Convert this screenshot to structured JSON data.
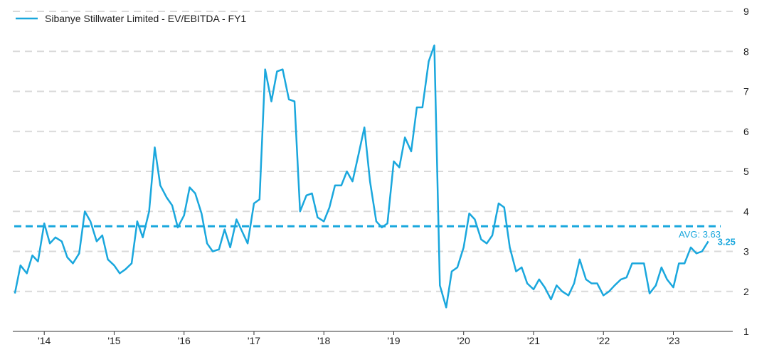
{
  "chart_data": {
    "type": "line",
    "series": [
      {
        "name": "Sibanye Stillwater Limited - EV/EBITDA - FY1",
        "x": [
          2013.58,
          2013.66,
          2013.75,
          2013.83,
          2013.91,
          2014.0,
          2014.08,
          2014.16,
          2014.25,
          2014.33,
          2014.41,
          2014.5,
          2014.58,
          2014.66,
          2014.75,
          2014.83,
          2014.91,
          2015.0,
          2015.08,
          2015.16,
          2015.25,
          2015.33,
          2015.41,
          2015.5,
          2015.58,
          2015.66,
          2015.75,
          2015.83,
          2015.91,
          2016.0,
          2016.08,
          2016.16,
          2016.25,
          2016.33,
          2016.41,
          2016.5,
          2016.58,
          2016.66,
          2016.75,
          2016.83,
          2016.91,
          2017.0,
          2017.08,
          2017.16,
          2017.25,
          2017.33,
          2017.41,
          2017.5,
          2017.58,
          2017.66,
          2017.75,
          2017.83,
          2017.91,
          2018.0,
          2018.08,
          2018.16,
          2018.25,
          2018.33,
          2018.41,
          2018.5,
          2018.58,
          2018.66,
          2018.75,
          2018.83,
          2018.91,
          2019.0,
          2019.08,
          2019.16,
          2019.25,
          2019.33,
          2019.41,
          2019.5,
          2019.58,
          2019.66,
          2019.75,
          2019.83,
          2019.91,
          2020.0,
          2020.08,
          2020.16,
          2020.25,
          2020.33,
          2020.41,
          2020.5,
          2020.58,
          2020.66,
          2020.75,
          2020.83,
          2020.91,
          2021.0,
          2021.08,
          2021.16,
          2021.25,
          2021.33,
          2021.41,
          2021.5,
          2021.58,
          2021.66,
          2021.75,
          2021.83,
          2021.91,
          2022.0,
          2022.08,
          2022.16,
          2022.25,
          2022.33,
          2022.41,
          2022.5,
          2022.58,
          2022.66,
          2022.75,
          2022.83,
          2022.91,
          2023.0,
          2023.08,
          2023.16,
          2023.25,
          2023.33,
          2023.41,
          2023.5
        ],
        "y": [
          1.95,
          2.65,
          2.45,
          2.9,
          2.75,
          3.7,
          3.2,
          3.35,
          3.25,
          2.85,
          2.7,
          2.95,
          4.0,
          3.75,
          3.25,
          3.4,
          2.8,
          2.65,
          2.45,
          2.55,
          2.7,
          3.75,
          3.35,
          4.0,
          5.6,
          4.65,
          4.35,
          4.15,
          3.6,
          3.9,
          4.6,
          4.45,
          3.95,
          3.2,
          3.0,
          3.05,
          3.55,
          3.1,
          3.8,
          3.5,
          3.2,
          4.2,
          4.3,
          7.55,
          6.75,
          7.5,
          7.55,
          6.8,
          6.75,
          4.0,
          4.4,
          4.45,
          3.85,
          3.75,
          4.1,
          4.65,
          4.65,
          5.0,
          4.75,
          5.45,
          6.1,
          4.75,
          3.75,
          3.6,
          3.7,
          5.25,
          5.1,
          5.85,
          5.5,
          6.6,
          6.6,
          7.75,
          8.15,
          2.15,
          1.6,
          2.5,
          2.6,
          3.1,
          3.95,
          3.8,
          3.3,
          3.2,
          3.4,
          4.2,
          4.1,
          3.1,
          2.5,
          2.6,
          2.2,
          2.05,
          2.3,
          2.1,
          1.8,
          2.15,
          2.0,
          1.9,
          2.2,
          2.8,
          2.3,
          2.2,
          2.2,
          1.9,
          2.0,
          2.15,
          2.3,
          2.35,
          2.7,
          2.7,
          2.7,
          1.95,
          2.15,
          2.6,
          2.3,
          2.1,
          2.7,
          2.7,
          3.1,
          2.95,
          3.0,
          3.25
        ]
      }
    ],
    "x_tick_labels": [
      {
        "label": "'14",
        "x": 2014.0
      },
      {
        "label": "'15",
        "x": 2015.0
      },
      {
        "label": "'16",
        "x": 2016.0
      },
      {
        "label": "'17",
        "x": 2017.0
      },
      {
        "label": "'18",
        "x": 2018.0
      },
      {
        "label": "'19",
        "x": 2019.0
      },
      {
        "label": "'20",
        "x": 2020.0
      },
      {
        "label": "'21",
        "x": 2021.0
      },
      {
        "label": "'22",
        "x": 2022.0
      },
      {
        "label": "'23",
        "x": 2023.0
      }
    ],
    "y_ticks": [
      1,
      2,
      3,
      4,
      5,
      6,
      7,
      8,
      9
    ],
    "ylim": [
      1,
      9
    ],
    "xlim": [
      2013.55,
      2023.85
    ],
    "average": {
      "value": 3.63,
      "label": "AVG: 3.63"
    },
    "last_value_label": "3.25",
    "grid": "horizontal dashed",
    "legend_position": "top-left",
    "line_color": "#1aa7dd",
    "avg_color": "#1aa7dd",
    "grid_color": "#d9d9d9"
  }
}
